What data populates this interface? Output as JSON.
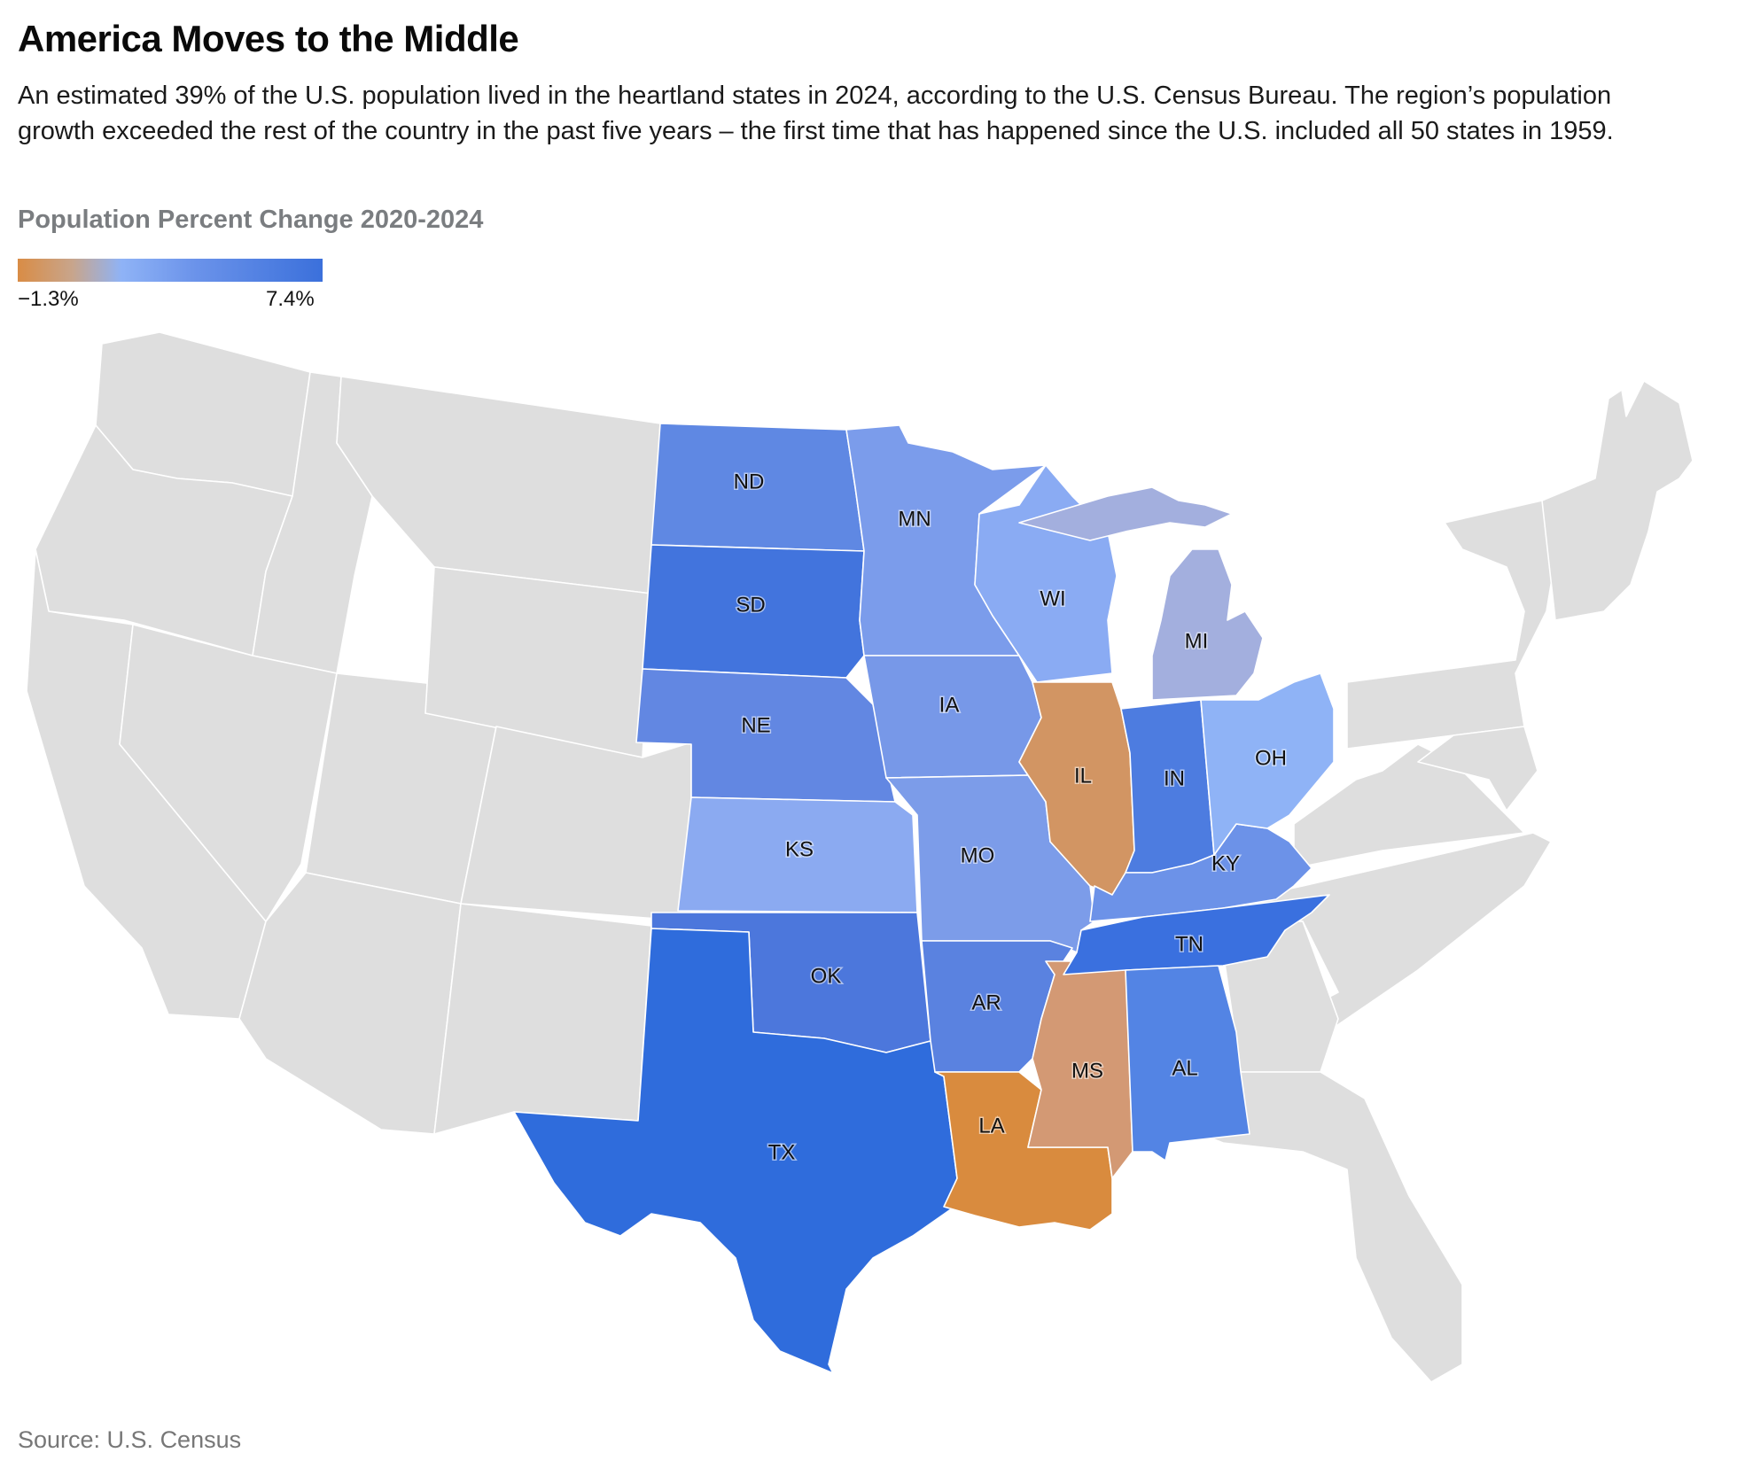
{
  "title": "America Moves to the Middle",
  "subtitle": "An estimated 39% of the U.S. population lived in the heartland states in 2024, according to the U.S. Census Bureau. The region’s population growth exceeded the rest of the country in the past five years – the first time that has happened since the U.S. included all 50 states in 1959.",
  "legend": {
    "title": "Population Percent Change 2020-2024",
    "min_label": "−1.3%",
    "max_label": "7.4%"
  },
  "source": "Source: U.S. Census",
  "colors": {
    "background_state": "#dedede",
    "border": "#ffffff",
    "negative": "#d98c45",
    "positive_high": "#2f6cdc"
  },
  "states": [
    {
      "abbr": "ND",
      "color": "#5f88e3"
    },
    {
      "abbr": "SD",
      "color": "#4274dd"
    },
    {
      "abbr": "NE",
      "color": "#6287e2"
    },
    {
      "abbr": "KS",
      "color": "#8baaf1"
    },
    {
      "abbr": "OK",
      "color": "#4c77dc"
    },
    {
      "abbr": "TX",
      "color": "#2f6cdc"
    },
    {
      "abbr": "MN",
      "color": "#7b9ceb"
    },
    {
      "abbr": "IA",
      "color": "#7798e8"
    },
    {
      "abbr": "MO",
      "color": "#7c9ce9"
    },
    {
      "abbr": "AR",
      "color": "#5a82e0"
    },
    {
      "abbr": "LA",
      "color": "#d98b3e"
    },
    {
      "abbr": "WI",
      "color": "#8aabf3"
    },
    {
      "abbr": "IL",
      "color": "#d29563"
    },
    {
      "abbr": "MS",
      "color": "#d39974"
    },
    {
      "abbr": "MI",
      "color": "#a3afde"
    },
    {
      "abbr": "IN",
      "color": "#4d7ce0"
    },
    {
      "abbr": "KY",
      "color": "#6c92e8"
    },
    {
      "abbr": "TN",
      "color": "#3a70df"
    },
    {
      "abbr": "AL",
      "color": "#5384e4"
    },
    {
      "abbr": "OH",
      "color": "#8fb3f6"
    }
  ]
}
